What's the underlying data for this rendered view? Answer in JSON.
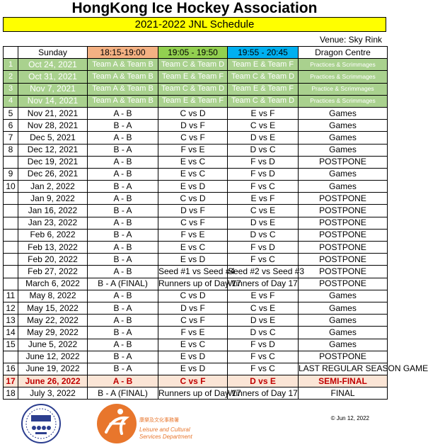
{
  "title": "HongKong Ice Hockey Association",
  "subtitle": "2021-2022 JNL Schedule",
  "venue": "Venue: Sky Rink",
  "headers": {
    "num": "",
    "day": "Sunday",
    "s1": "18:15-19:00",
    "s2": "19:05 - 19:50",
    "s3": "19:55 - 20:45",
    "loc": "Dragon Centre"
  },
  "rows": [
    {
      "num": "1",
      "date": "Oct 24, 2021",
      "s1": "Team A & Team B",
      "s2": "Team C & Team D",
      "s3": "Team E & Team F",
      "note": "Practices & Scrimmages",
      "style": "practice"
    },
    {
      "num": "2",
      "date": "Oct 31, 2021",
      "s1": "Team A & Team B",
      "s2": "Team E & Team F",
      "s3": "Team C & Team D",
      "note": "Practices & Scrimmages",
      "style": "practice"
    },
    {
      "num": "3",
      "date": "Nov 7, 2021",
      "s1": "Team A & Team B",
      "s2": "Team C & Team D",
      "s3": "Team E & Team F",
      "note": "Practice & Scrimmages",
      "style": "practice"
    },
    {
      "num": "4",
      "date": "Nov 14, 2021",
      "s1": "Team A & Team B",
      "s2": "Team E & Team F",
      "s3": "Team C & Team D",
      "note": "Practices & Scrimmages",
      "style": "practice"
    },
    {
      "num": "5",
      "date": "Nov 21, 2021",
      "s1": "A - B",
      "s2": "C  vs  D",
      "s3": "E  vs  F",
      "note": "Games",
      "style": ""
    },
    {
      "num": "6",
      "date": "Nov 28, 2021",
      "s1": "B - A",
      "s2": "D  vs  F",
      "s3": "C  vs  E",
      "note": "Games",
      "style": ""
    },
    {
      "num": "7",
      "date": "Dec 5, 2021",
      "s1": "A - B",
      "s2": "C  vs  F",
      "s3": "D  vs  E",
      "note": "Games",
      "style": ""
    },
    {
      "num": "8",
      "date": "Dec 12, 2021",
      "s1": "B - A",
      "s2": "F  vs  E",
      "s3": "D  vs  C",
      "note": "Games",
      "style": ""
    },
    {
      "num": "",
      "date": "Dec 19, 2021",
      "s1": "A - B",
      "s2": "E  vs  C",
      "s3": "F  vs  D",
      "note": "POSTPONE",
      "style": ""
    },
    {
      "num": "9",
      "date": "Dec 26, 2021",
      "s1": "A - B",
      "s2": "E  vs  C",
      "s3": "F  vs  D",
      "note": "Games",
      "style": ""
    },
    {
      "num": "10",
      "date": "Jan 2, 2022",
      "s1": "B - A",
      "s2": "E  vs  D",
      "s3": "F  vs  C",
      "note": "Games",
      "style": ""
    },
    {
      "num": "",
      "date": "Jan 9, 2022",
      "s1": "A - B",
      "s2": "C  vs  D",
      "s3": "E  vs  F",
      "note": "POSTPONE",
      "style": ""
    },
    {
      "num": "",
      "date": "Jan 16, 2022",
      "s1": "B - A",
      "s2": "D  vs  F",
      "s3": "C  vs E",
      "note": "POSTPONE",
      "style": ""
    },
    {
      "num": "",
      "date": "Jan 23, 2022",
      "s1": "A - B",
      "s2": "C  vs  F",
      "s3": "D  vs  E",
      "note": "POSTPONE",
      "style": ""
    },
    {
      "num": "",
      "date": "Feb 6, 2022",
      "s1": "B - A",
      "s2": "F  vs  E",
      "s3": "D  vs  C",
      "note": "POSTPONE",
      "style": ""
    },
    {
      "num": "",
      "date": "Feb 13, 2022",
      "s1": "A - B",
      "s2": "E  vs  C",
      "s3": "F  vs  D",
      "note": "POSTPONE",
      "style": ""
    },
    {
      "num": "",
      "date": "Feb 20, 2022",
      "s1": "B - A",
      "s2": "E  vs  D",
      "s3": "F  vs  C",
      "note": "POSTPONE",
      "style": ""
    },
    {
      "num": "",
      "date": "Feb 27, 2022",
      "s1": "A - B",
      "s2": "Seed #1  vs  Seed #4",
      "s3": "Seed #2  vs  Seed #3",
      "note": "POSTPONE",
      "style": "",
      "small": true
    },
    {
      "num": "",
      "date": "March 6, 2022",
      "s1": "B - A  (FINAL)",
      "s2": "Runners up  of Day 17",
      "s3": "Winners of Day 17",
      "note": "POSTPONE",
      "style": "",
      "small": true
    },
    {
      "num": "11",
      "date": "May 8, 2022",
      "s1": "A - B",
      "s2": "C  vs  D",
      "s3": "E  vs  F",
      "note": "Games",
      "style": ""
    },
    {
      "num": "12",
      "date": "May 15, 2022",
      "s1": "B - A",
      "s2": "D  vs  F",
      "s3": "C  vs E",
      "note": "Games",
      "style": ""
    },
    {
      "num": "13",
      "date": "May 22, 2022",
      "s1": "A - B",
      "s2": "C  vs  F",
      "s3": "D  vs  E",
      "note": "Games",
      "style": ""
    },
    {
      "num": "14",
      "date": "May 29, 2022",
      "s1": "B - A",
      "s2": "F  vs  E",
      "s3": "D  vs  C",
      "note": "Games",
      "style": ""
    },
    {
      "num": "15",
      "date": "June 5, 2022",
      "s1": "A - B",
      "s2": "E  vs  C",
      "s3": "F  vs  D",
      "note": "Games",
      "style": ""
    },
    {
      "num": "",
      "date": "June 12, 2022",
      "s1": "B - A",
      "s2": "E  vs  D",
      "s3": "F  vs  C",
      "note": "POSTPONE",
      "style": ""
    },
    {
      "num": "16",
      "date": "June 19, 2022",
      "s1": "B - A",
      "s2": "E  vs  D",
      "s3": "F  vs  C",
      "note": "LAST REGULAR SEASON GAME",
      "style": "",
      "smallnote": true
    },
    {
      "num": "17",
      "date": "June 26, 2022",
      "s1": "A - B",
      "s2": "C  vs  F",
      "s3": "D  vs  E",
      "note": "SEMI-FINAL",
      "style": "semi"
    },
    {
      "num": "18",
      "date": "July 3, 2022",
      "s1": "B - A  (FINAL)",
      "s2": "Runners up  of Day 17",
      "s3": "Winners of Day 17",
      "note": "FINAL",
      "style": "",
      "small": true
    }
  ],
  "copyright": "© Jun 12, 2022",
  "logos": {
    "left": "hkiha-logo",
    "right_cn": "康樂及文化事務署",
    "right_en1": "Leisure and Cultural",
    "right_en2": "Services Department"
  },
  "colors": {
    "subtitle_bg": "#ffff00",
    "slot1": "#f4b183",
    "slot2": "#92d050",
    "slot3": "#00b0f0",
    "practice": "#a9d18e",
    "semi": "#c00000",
    "lcsd_orange": "#e8762c"
  }
}
